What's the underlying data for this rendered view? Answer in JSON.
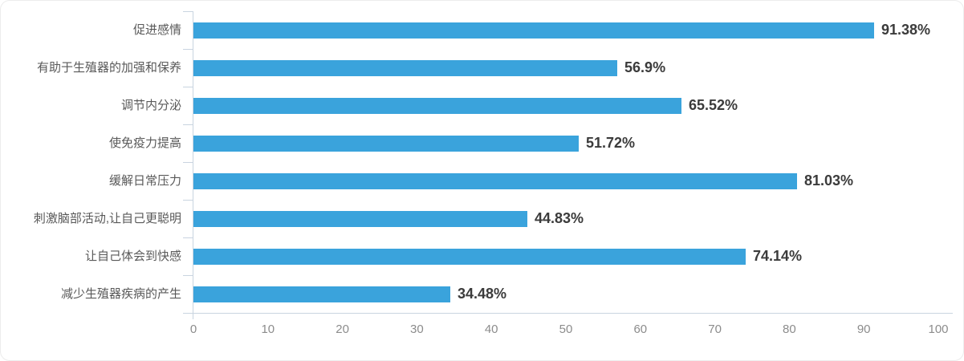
{
  "chart_data": {
    "type": "bar",
    "orientation": "horizontal",
    "title": "",
    "xlabel": "",
    "ylabel": "",
    "categories": [
      "促进感情",
      "有助于生殖器的加强和保养",
      "调节内分泌",
      "使免疫力提高",
      "缓解日常压力",
      "刺激脑部活动,让自己更聪明",
      "让自己体会到快感",
      "减少生殖器疾病的产生"
    ],
    "values": [
      91.38,
      56.9,
      65.52,
      51.72,
      81.03,
      44.83,
      74.14,
      34.48
    ],
    "value_labels": [
      "91.38%",
      "56.9%",
      "65.52%",
      "51.72%",
      "81.03%",
      "44.83%",
      "74.14%",
      "34.48%"
    ],
    "xlim": [
      0,
      100
    ],
    "x_ticks": [
      0,
      10,
      20,
      30,
      40,
      50,
      60,
      70,
      80,
      90,
      100
    ],
    "grid": "off",
    "legend": "none",
    "bar_color": "#3aa3dc",
    "axis_color": "#c9d4e0",
    "category_text_color": "#595959",
    "value_text_color": "#3b3b3b",
    "tick_text_color": "#8c8c8c"
  }
}
